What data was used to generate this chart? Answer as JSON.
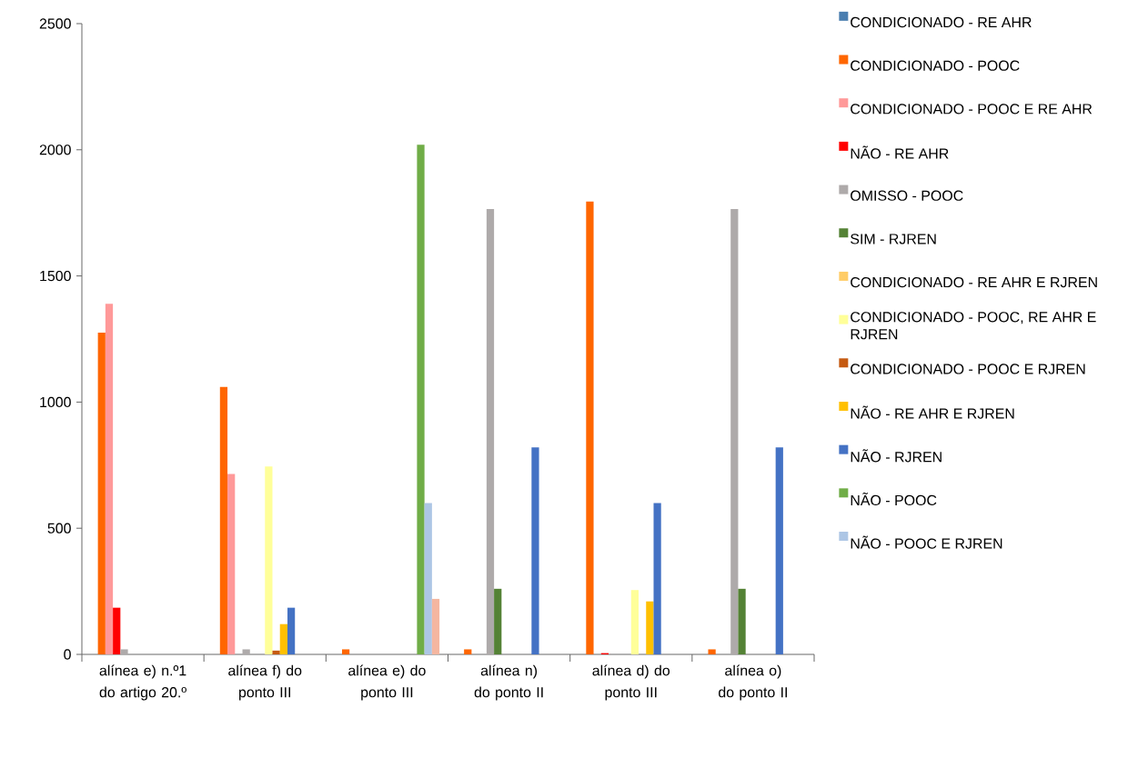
{
  "chart_data": {
    "type": "bar",
    "categories": [
      "alínea e) n.º1 do artigo 20.º",
      "alínea f) do ponto III",
      "alínea e) do ponto III",
      "alínea n) do ponto II",
      "alínea d) do ponto III",
      "alínea o) do ponto II"
    ],
    "series": [
      {
        "name": "CONDICIONADO - RE AHR",
        "color": "#4a7eb0",
        "values": [
          null,
          null,
          null,
          null,
          null,
          null
        ]
      },
      {
        "name": "CONDICIONADO - POOC",
        "color": "#ff6600",
        "values": [
          1275,
          1060,
          20,
          20,
          1795,
          20
        ]
      },
      {
        "name": "CONDICIONADO - POOC E RE AHR",
        "color": "#ff9999",
        "values": [
          1390,
          715,
          null,
          null,
          null,
          null
        ]
      },
      {
        "name": "NÃO - RE AHR",
        "color": "#ff0000",
        "values": [
          185,
          null,
          null,
          null,
          5,
          null
        ]
      },
      {
        "name": "OMISSO - POOC",
        "color": "#aeaaaa",
        "values": [
          20,
          20,
          null,
          1765,
          null,
          1765
        ]
      },
      {
        "name": "SIM - RJREN",
        "color": "#548235",
        "values": [
          null,
          null,
          null,
          260,
          null,
          260
        ]
      },
      {
        "name": "CONDICIONADO - RE AHR E RJREN",
        "color": "#ffcc66",
        "values": [
          null,
          null,
          null,
          null,
          null,
          null
        ]
      },
      {
        "name": "CONDICIONADO - POOC, RE AHR E RJREN",
        "color": "#ffff99",
        "values": [
          null,
          745,
          null,
          null,
          255,
          null
        ]
      },
      {
        "name": "CONDICIONADO - POOC E RJREN",
        "color": "#c55a11",
        "values": [
          null,
          15,
          null,
          null,
          null,
          null
        ]
      },
      {
        "name": "NÃO - RE AHR E RJREN",
        "color": "#ffc000",
        "values": [
          null,
          120,
          null,
          null,
          210,
          null
        ]
      },
      {
        "name": "NÃO - RJREN",
        "color": "#4472c4",
        "values": [
          null,
          185,
          null,
          820,
          600,
          820
        ]
      },
      {
        "name": "NÃO - POOC",
        "color": "#70ad47",
        "values": [
          null,
          null,
          2020,
          null,
          null,
          null
        ]
      },
      {
        "name": "NÃO - POOC E RJREN",
        "color": "#adc6e5",
        "values": [
          null,
          null,
          600,
          null,
          null,
          null
        ]
      },
      {
        "color": "#f4b6a0",
        "values": [
          null,
          null,
          220,
          null,
          null,
          null
        ]
      }
    ],
    "ylim": [
      0,
      2500
    ],
    "yticks": [
      0,
      500,
      1000,
      1500,
      2000,
      2500
    ],
    "legend": "right"
  }
}
